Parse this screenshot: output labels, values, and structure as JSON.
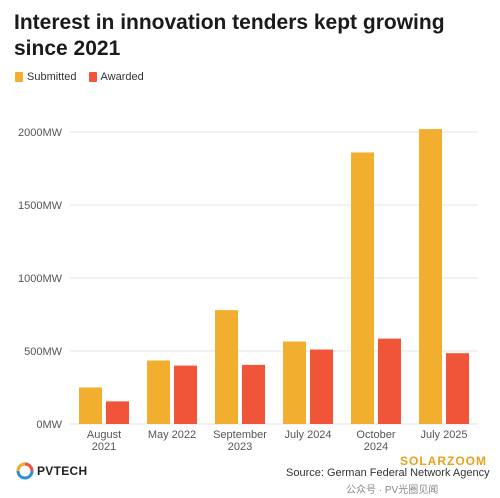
{
  "title": "Interest in innovation tenders kept growing since 2021",
  "source": "Source: German Federal Network Agency",
  "logo_text": "PVTECH",
  "watermark_brand": "SOLARZOOM",
  "watermark_cn": "公众号 · PV光圈见闻",
  "colors": {
    "submitted": "#F2AE2E",
    "awarded": "#F0553A",
    "grid": "#e3e3e3",
    "axis_text": "#555555"
  },
  "chart_data": {
    "type": "bar",
    "title": "Interest in innovation tenders kept growing since 2021",
    "categories": [
      [
        "August",
        "2021"
      ],
      [
        "May 2022"
      ],
      [
        "September",
        "2023"
      ],
      [
        "July 2024"
      ],
      [
        "October",
        "2024"
      ],
      [
        "July 2025"
      ]
    ],
    "series": [
      {
        "name": "Submitted",
        "color": "#F2AE2E",
        "values": [
          250,
          435,
          780,
          565,
          1860,
          2020
        ]
      },
      {
        "name": "Awarded",
        "color": "#F0553A",
        "values": [
          155,
          400,
          405,
          510,
          585,
          485
        ]
      }
    ],
    "ylim": [
      0,
      2000
    ],
    "yticks": [
      0,
      500,
      1000,
      1500,
      2000
    ],
    "ytick_labels": [
      "0MW",
      "500MW",
      "1000MW",
      "1500MW",
      "2000MW"
    ],
    "xlabel": "",
    "ylabel": "",
    "legend": "top-left",
    "grid": true
  }
}
